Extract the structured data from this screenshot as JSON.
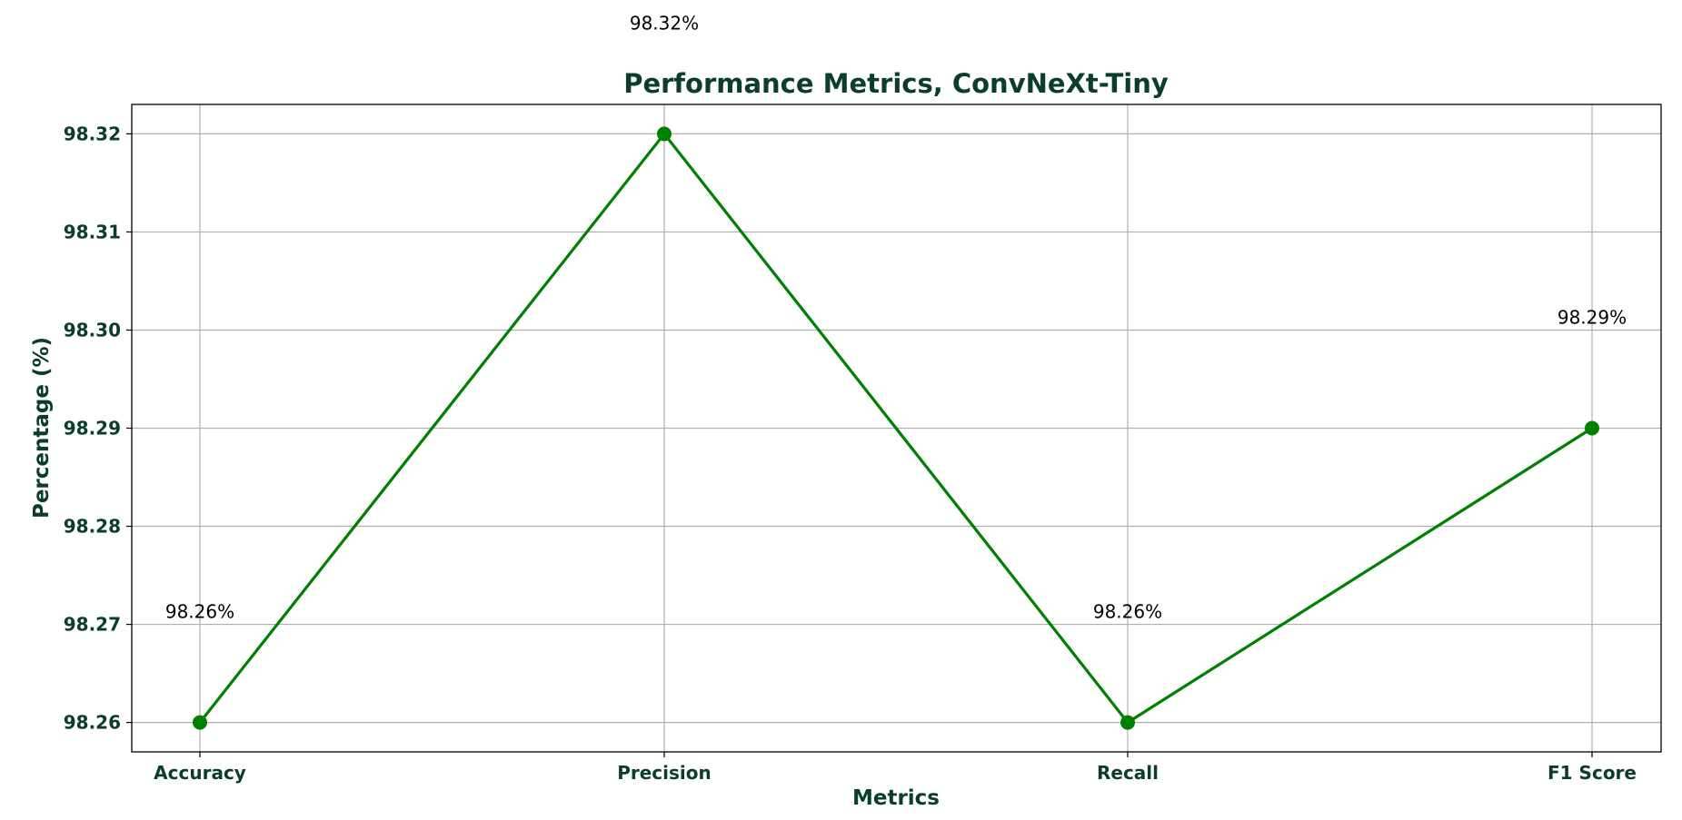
{
  "chart_data": {
    "type": "line",
    "title": "Performance Metrics, ConvNeXt-Tiny",
    "xlabel": "Metrics",
    "ylabel": "Percentage (%)",
    "categories": [
      "Accuracy",
      "Precision",
      "Recall",
      "F1 Score"
    ],
    "series": [
      {
        "values": [
          98.26,
          98.32,
          98.26,
          98.29
        ]
      }
    ],
    "data_labels": [
      "98.26%",
      "98.32%",
      "98.26%",
      "98.29%"
    ],
    "yticks": [
      "98.26",
      "98.27",
      "98.28",
      "98.29",
      "98.30",
      "98.31",
      "98.32"
    ],
    "ylim": [
      98.257,
      98.323
    ],
    "grid": true,
    "colors": {
      "line": "#008000",
      "text": "#0b3d2e",
      "grid": "#b0b0b0",
      "frame": "#000000"
    }
  }
}
